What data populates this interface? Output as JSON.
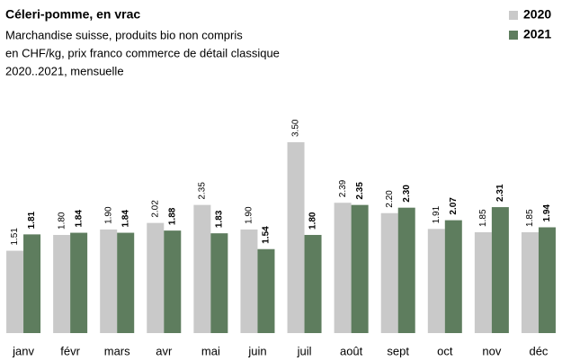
{
  "chart_data": {
    "type": "bar",
    "title": "Céleri-pomme,  en vrac",
    "subtitle": [
      "Marchandise suisse, produits bio non compris",
      "en CHF/kg,  prix franco commerce de détail classique",
      "2020..2021, mensuelle"
    ],
    "categories": [
      "janv",
      "févr",
      "mars",
      "avr",
      "mai",
      "juin",
      "juil",
      "août",
      "sept",
      "oct",
      "nov",
      "déc"
    ],
    "series": [
      {
        "name": "2020",
        "color": "#c9c9c9",
        "values": [
          1.51,
          1.8,
          1.9,
          2.02,
          2.35,
          1.9,
          3.5,
          2.39,
          2.2,
          1.91,
          1.85,
          1.85
        ],
        "value_labels": [
          "1.51",
          "1.80",
          "1.90",
          "2.02",
          "2.35",
          "1.90",
          "3.50",
          "2.39",
          "2.20",
          "1.91",
          "1.85",
          "1.85"
        ]
      },
      {
        "name": "2021",
        "color": "#5e7d5e",
        "values": [
          1.81,
          1.84,
          1.84,
          1.88,
          1.83,
          1.54,
          1.8,
          2.35,
          2.3,
          2.07,
          2.31,
          1.94
        ],
        "value_labels": [
          "1.81",
          "1.84",
          "1.84",
          "1.88",
          "1.83",
          "1.54",
          "1.80",
          "2.35",
          "2.30",
          "2.07",
          "2.31",
          "1.94"
        ]
      }
    ],
    "legend": "top-right"
  }
}
